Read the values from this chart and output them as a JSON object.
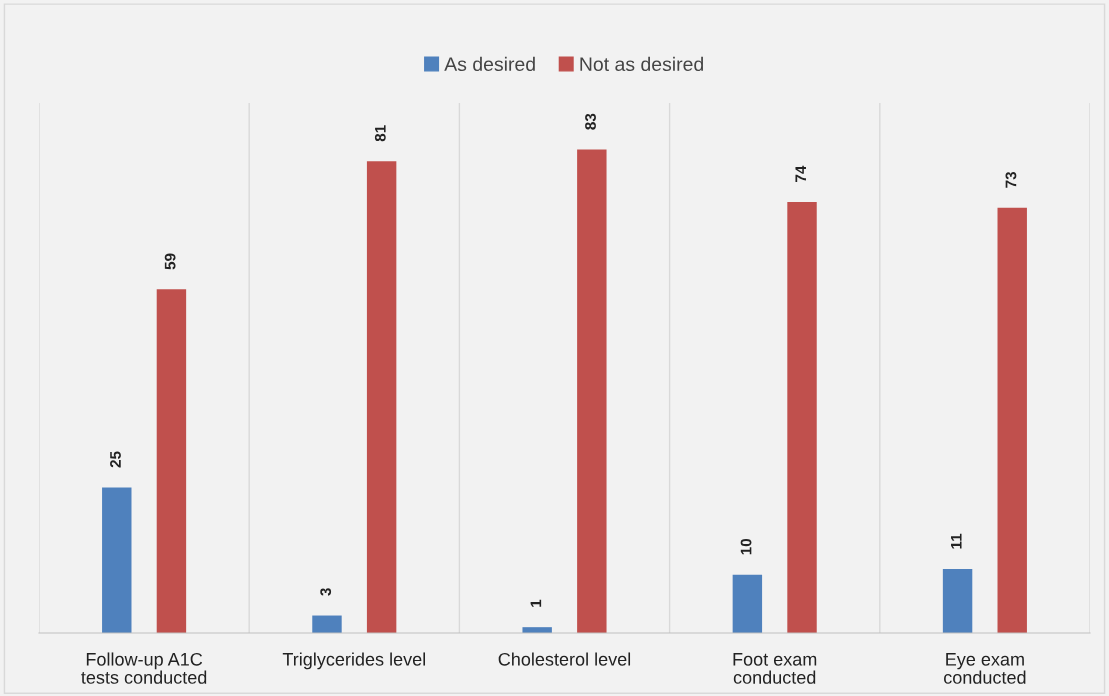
{
  "chart_data": {
    "type": "bar",
    "categories": [
      "Follow-up A1C\ntests conducted",
      "Triglycerides level",
      "Cholesterol level",
      "Foot exam\nconducted",
      "Eye exam\nconducted"
    ],
    "series": [
      {
        "name": "As desired",
        "color": "#4f81bd",
        "values": [
          25,
          3,
          1,
          10,
          11
        ]
      },
      {
        "name": "Not as desired",
        "color": "#c0504d",
        "values": [
          59,
          81,
          83,
          74,
          73
        ]
      }
    ],
    "ylim": [
      0,
      91
    ],
    "tick_labels": "x",
    "data_labels": true,
    "legend": "top",
    "grid": "x"
  }
}
